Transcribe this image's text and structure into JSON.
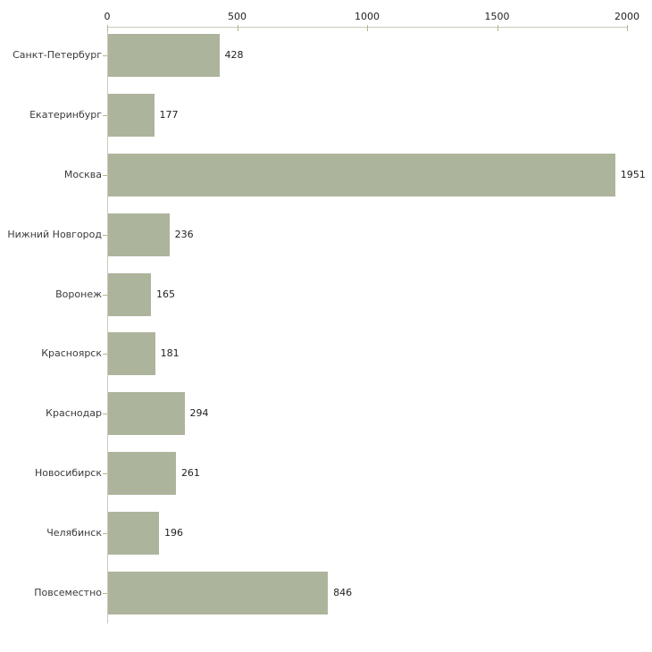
{
  "chart_data": {
    "type": "bar",
    "orientation": "horizontal",
    "title": "",
    "xlabel": "",
    "ylabel": "",
    "categories": [
      "Санкт-Петербург",
      "Екатеринбург",
      "Москва",
      "Нижний Новгород",
      "Воронеж",
      "Красноярск",
      "Краснодар",
      "Новосибирск",
      "Челябинск",
      "Повсеместно"
    ],
    "values": [
      428,
      177,
      1951,
      236,
      165,
      181,
      294,
      261,
      196,
      846
    ],
    "x_ticks": [
      0,
      500,
      1000,
      1500,
      2000
    ],
    "xlim": [
      0,
      2000
    ],
    "grid": false,
    "legend_position": "none",
    "value_labels_visible": true,
    "axis_position": "top"
  },
  "colors": {
    "background": "#ffffff",
    "bar_fill": "#adb49c",
    "axis_line": "#c9c9bb",
    "tick_mark": "#b5b58c",
    "category_label_text": "#3a3a3a",
    "value_label_text": "#1f1f1f"
  }
}
